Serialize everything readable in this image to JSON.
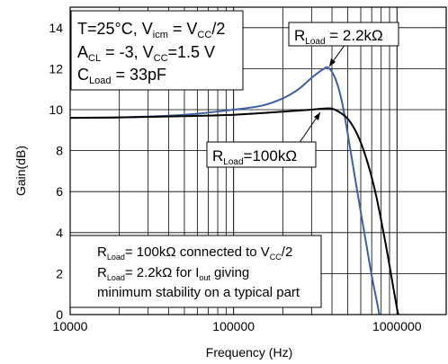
{
  "chart_data": {
    "type": "line",
    "title": "",
    "xlabel": "Frequency (Hz)",
    "ylabel": "Gain(dB)",
    "x_scale": "log",
    "xlim": [
      10000,
      2000000
    ],
    "ylim": [
      0,
      15
    ],
    "x_ticks": [
      "10000",
      "100000",
      "1000000"
    ],
    "y_ticks": [
      "0",
      "2",
      "4",
      "6",
      "8",
      "10",
      "12",
      "14"
    ],
    "grid": true,
    "colors": {
      "series_2k2": "#3c5fa6",
      "series_100k": "#000000"
    },
    "series": [
      {
        "name": "RLoad = 2.2kΩ",
        "x": [
          10000,
          20000,
          50000,
          100000,
          150000,
          200000,
          250000,
          300000,
          350000,
          380000,
          420000,
          460000,
          500000,
          550000,
          600000,
          650000,
          700000,
          750000,
          780000
        ],
        "y": [
          9.6,
          9.62,
          9.75,
          10.0,
          10.2,
          10.55,
          11.0,
          11.55,
          11.95,
          12.05,
          11.5,
          10.4,
          8.8,
          6.8,
          5.0,
          3.4,
          1.9,
          0.7,
          0.0
        ]
      },
      {
        "name": "RLoad = 100kΩ",
        "x": [
          10000,
          20000,
          50000,
          100000,
          200000,
          300000,
          350000,
          400000,
          450000,
          500000,
          550000,
          600000,
          650000,
          700000,
          750000,
          800000,
          850000,
          900000,
          950000,
          1000000,
          1020000
        ],
        "y": [
          9.6,
          9.62,
          9.68,
          9.75,
          9.9,
          10.0,
          10.05,
          10.05,
          9.85,
          9.55,
          9.05,
          8.4,
          7.6,
          6.7,
          5.7,
          4.6,
          3.5,
          2.4,
          1.3,
          0.3,
          0.0
        ]
      }
    ]
  },
  "annotations": {
    "conditions": {
      "line1": [
        "T",
        "=",
        "25",
        "°",
        "C",
        ", ",
        "V",
        "icm",
        " = ",
        "V",
        "CC",
        "/2"
      ],
      "line2": [
        "A",
        "CL",
        " = -3, ",
        "V",
        "CC",
        "=1.5 V"
      ],
      "line3": [
        "C",
        "Load",
        " = 33pF"
      ]
    },
    "label_2k2": [
      "R",
      "Load",
      " = 2.2kΩ"
    ],
    "label_100k": [
      "R",
      "Load",
      "=100kΩ"
    ],
    "note": {
      "line1": [
        "R",
        "Load",
        "= 100kΩ connected to V",
        "CC",
        "/2"
      ],
      "line2": [
        "R",
        "Load",
        "= 2.2kΩ for I",
        "out",
        " giving"
      ],
      "line3": [
        "minimum stability on a typical part"
      ]
    }
  }
}
